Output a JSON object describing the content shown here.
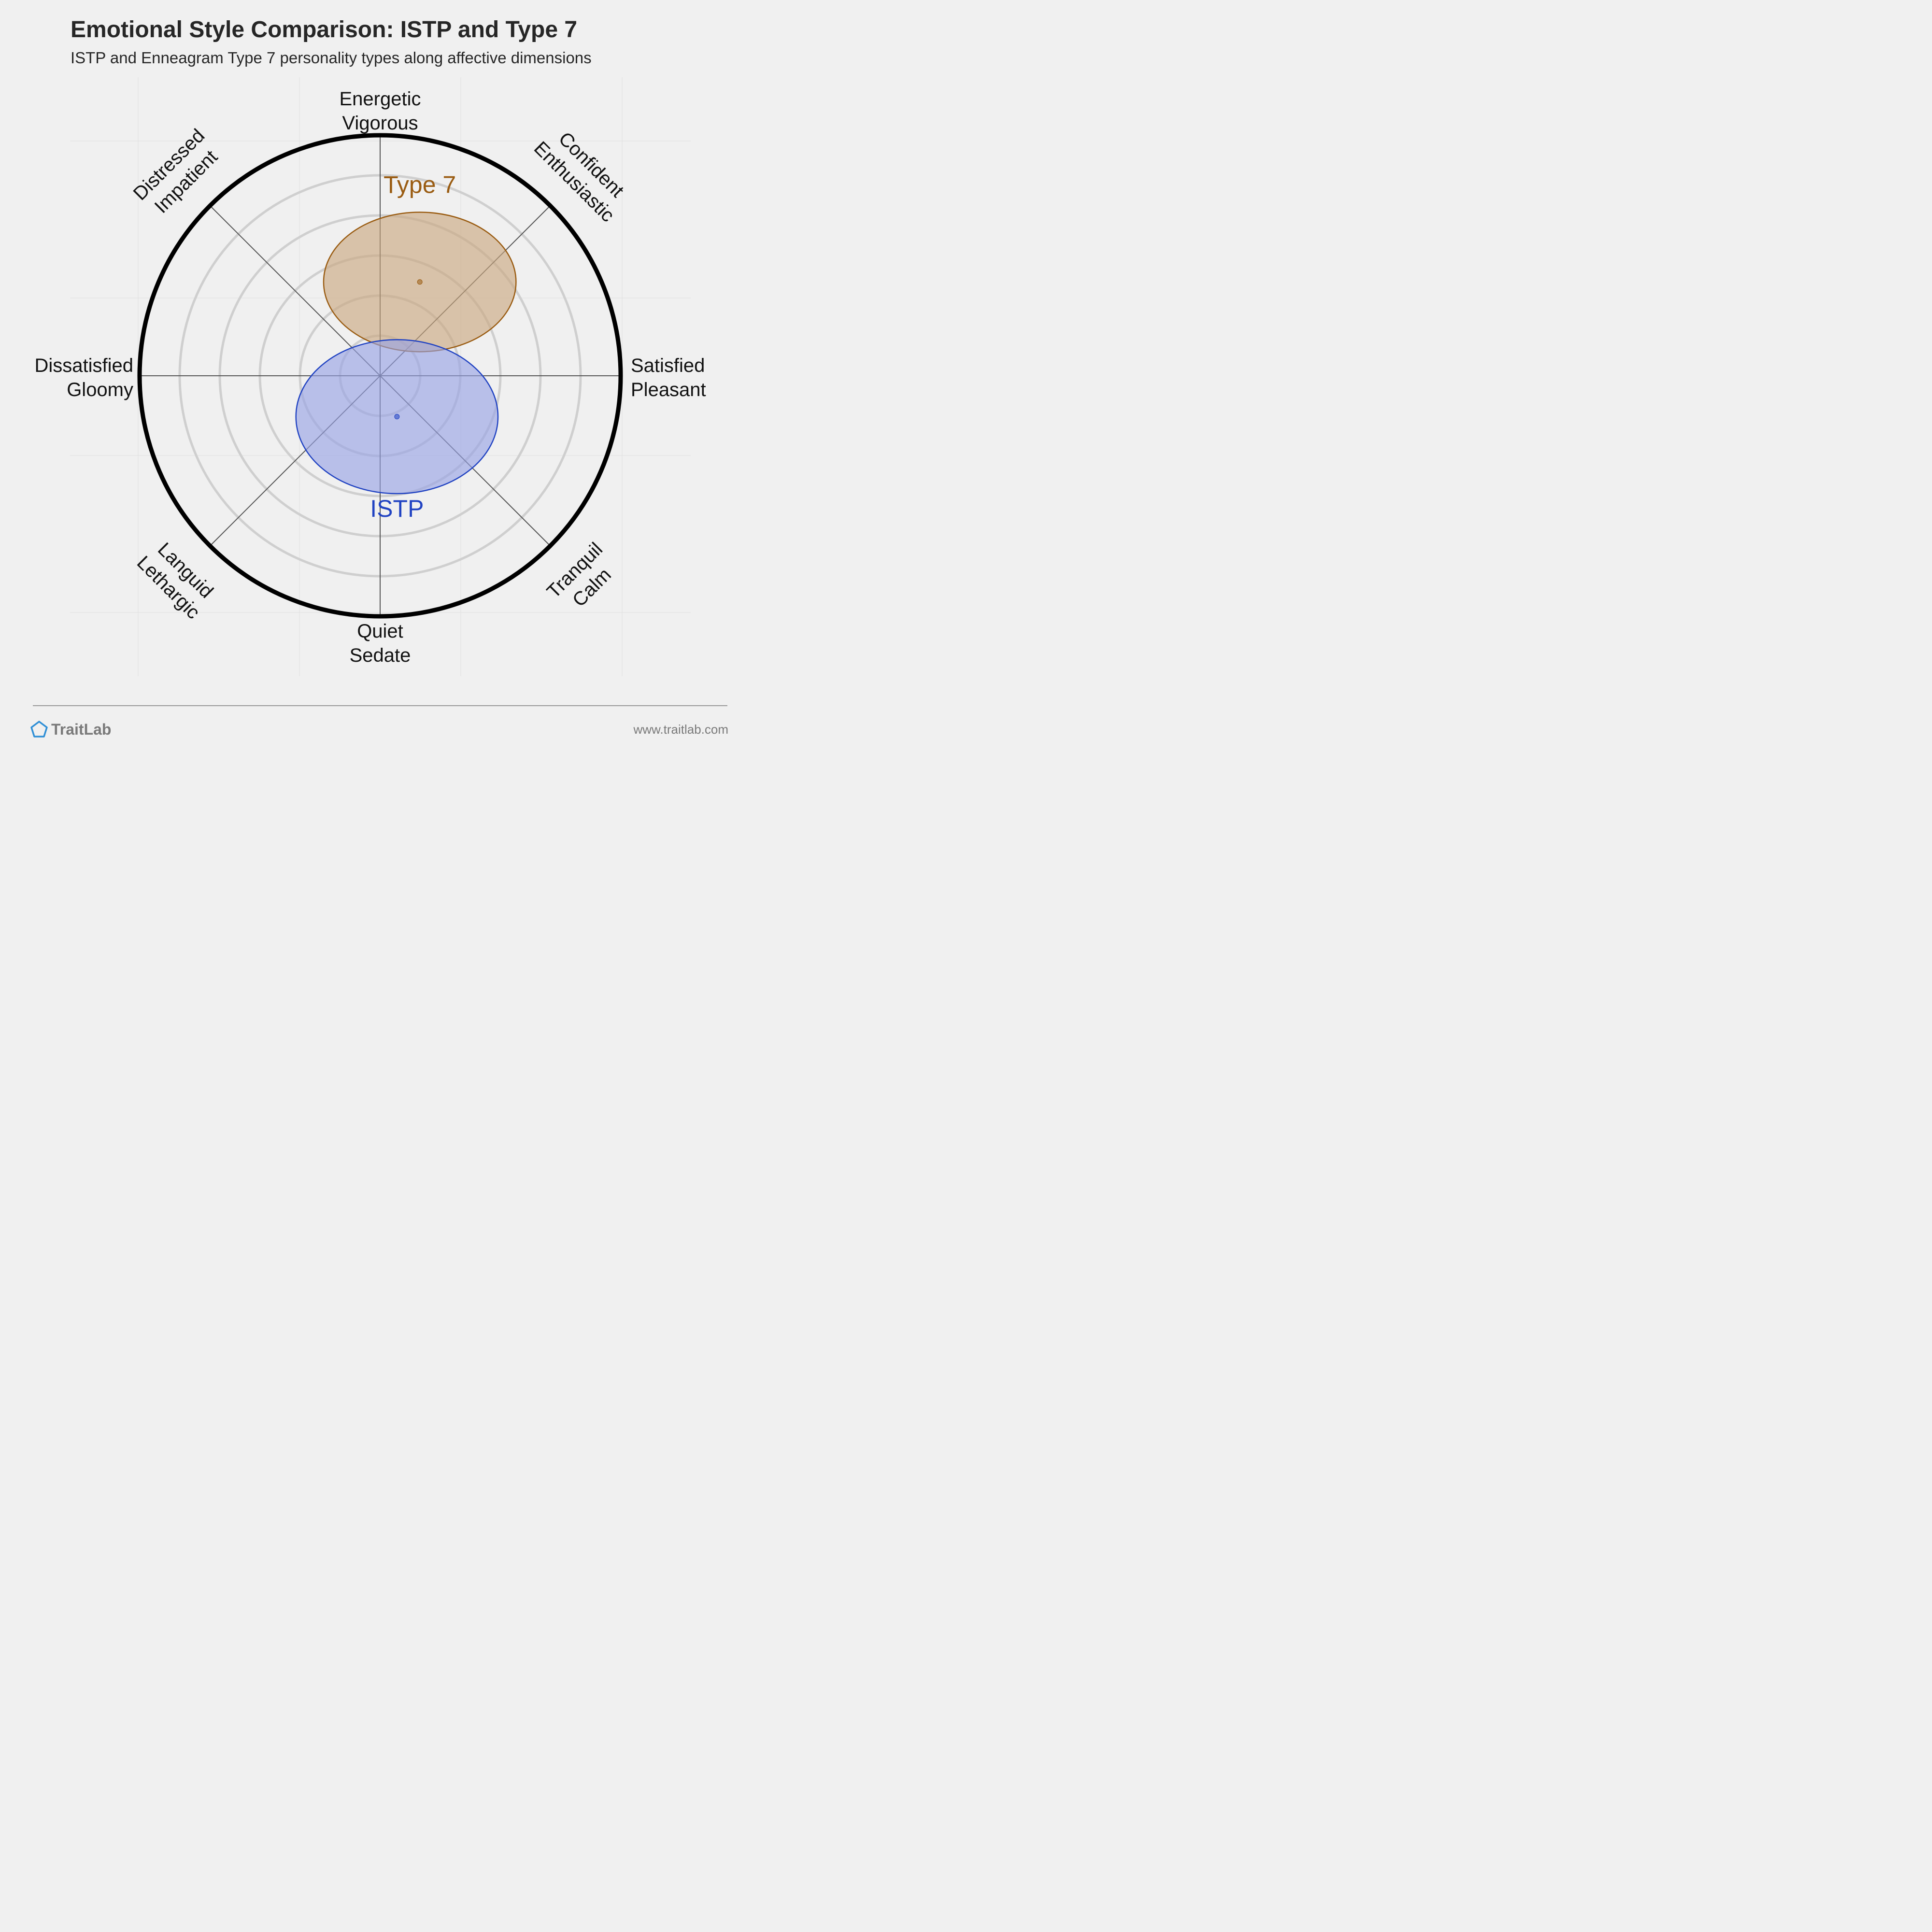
{
  "chart_data": {
    "type": "scatter",
    "title": "Emotional Style Comparison: ISTP and Type 7",
    "subtitle": "ISTP and Enneagram Type 7 personality types along affective dimensions",
    "xlim": [
      -1,
      1
    ],
    "ylim": [
      -1,
      1
    ],
    "grid": true,
    "axes": [
      {
        "key": "energetic",
        "lines": [
          "Energetic",
          "Vigorous"
        ]
      },
      {
        "key": "confident",
        "lines": [
          "Confident",
          "Enthusiastic"
        ]
      },
      {
        "key": "satisfied",
        "lines": [
          "Satisfied",
          "Pleasant"
        ]
      },
      {
        "key": "tranquil",
        "lines": [
          "Tranquil",
          "Calm"
        ]
      },
      {
        "key": "quiet",
        "lines": [
          "Quiet",
          "Sedate"
        ]
      },
      {
        "key": "languid",
        "lines": [
          "Languid",
          "Lethargic"
        ]
      },
      {
        "key": "dissatisfied",
        "lines": [
          "Dissatisfied",
          "Gloomy"
        ]
      },
      {
        "key": "distressed",
        "lines": [
          "Distressed",
          "Impatient"
        ]
      }
    ],
    "series": [
      {
        "name": "Type 7",
        "x": 0.165,
        "y": 0.39,
        "x_spread": 0.4,
        "y_spread": 0.29,
        "color": "#9a5c12",
        "fill": "#c9a77e"
      },
      {
        "name": "ISTP",
        "x": 0.07,
        "y": -0.17,
        "x_spread": 0.42,
        "y_spread": 0.32,
        "color": "#2143c2",
        "fill": "#96a2e5"
      }
    ]
  },
  "footer": {
    "brand": "TraitLab",
    "url": "www.traitlab.com"
  }
}
